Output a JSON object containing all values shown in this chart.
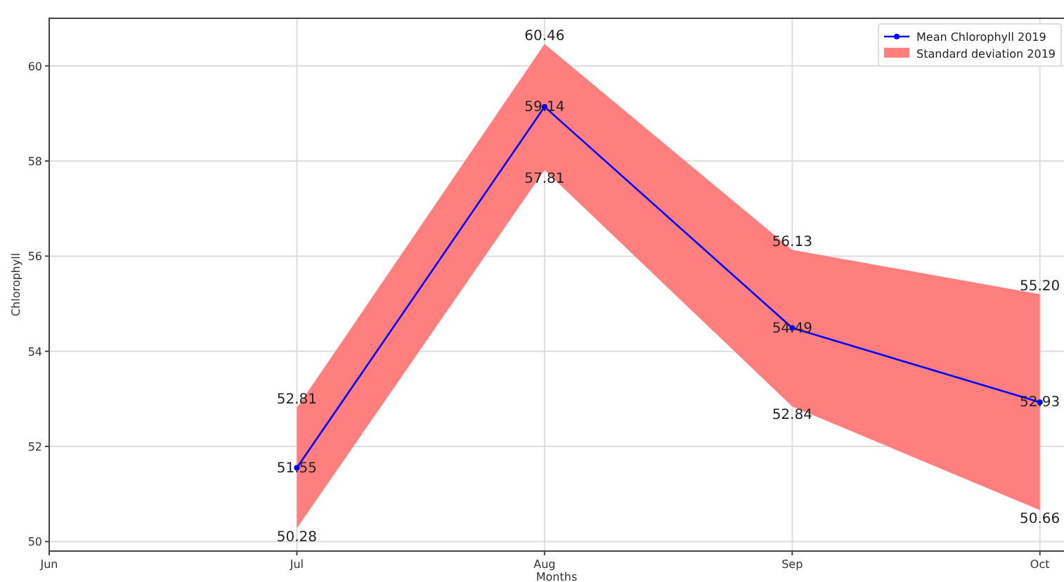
{
  "chart_data": {
    "type": "line",
    "xlabel": "Months",
    "ylabel": "Chlorophyll",
    "categories": [
      "Jun",
      "Jul",
      "Aug",
      "Sep",
      "Oct"
    ],
    "series": [
      {
        "name": "Mean Chlorophyll 2019",
        "type": "line",
        "color": "#0000ff",
        "values": [
          null,
          51.55,
          59.14,
          54.49,
          52.93
        ],
        "lower": [
          null,
          50.28,
          57.81,
          52.84,
          50.66
        ],
        "upper": [
          null,
          52.81,
          60.46,
          56.13,
          55.2
        ]
      },
      {
        "name": "Standard deviation 2019",
        "type": "area",
        "color": "#ff7f7f",
        "values": [
          null,
          null,
          null,
          null,
          null
        ]
      }
    ],
    "annotations": [
      {
        "text": "52.81",
        "x": "Jul",
        "y": 52.81
      },
      {
        "text": "50.28",
        "x": "Jul",
        "y": 50.28
      },
      {
        "text": "60.46",
        "x": "Aug",
        "y": 60.46
      },
      {
        "text": "57.81",
        "x": "Aug",
        "y": 57.81
      },
      {
        "text": "56.13",
        "x": "Sep",
        "y": 56.13
      },
      {
        "text": "52.84",
        "x": "Sep",
        "y": 52.84
      },
      {
        "text": "55.20",
        "x": "Oct",
        "y": 55.2
      },
      {
        "text": "50.66",
        "x": "Oct",
        "y": 50.66
      }
    ],
    "ylim": [
      49.8,
      61
    ],
    "yticks": [
      50,
      52,
      54,
      56,
      58,
      60
    ],
    "grid": true,
    "legend": "top right",
    "marker": "circle",
    "line_style": "solid",
    "data_labels": true
  }
}
